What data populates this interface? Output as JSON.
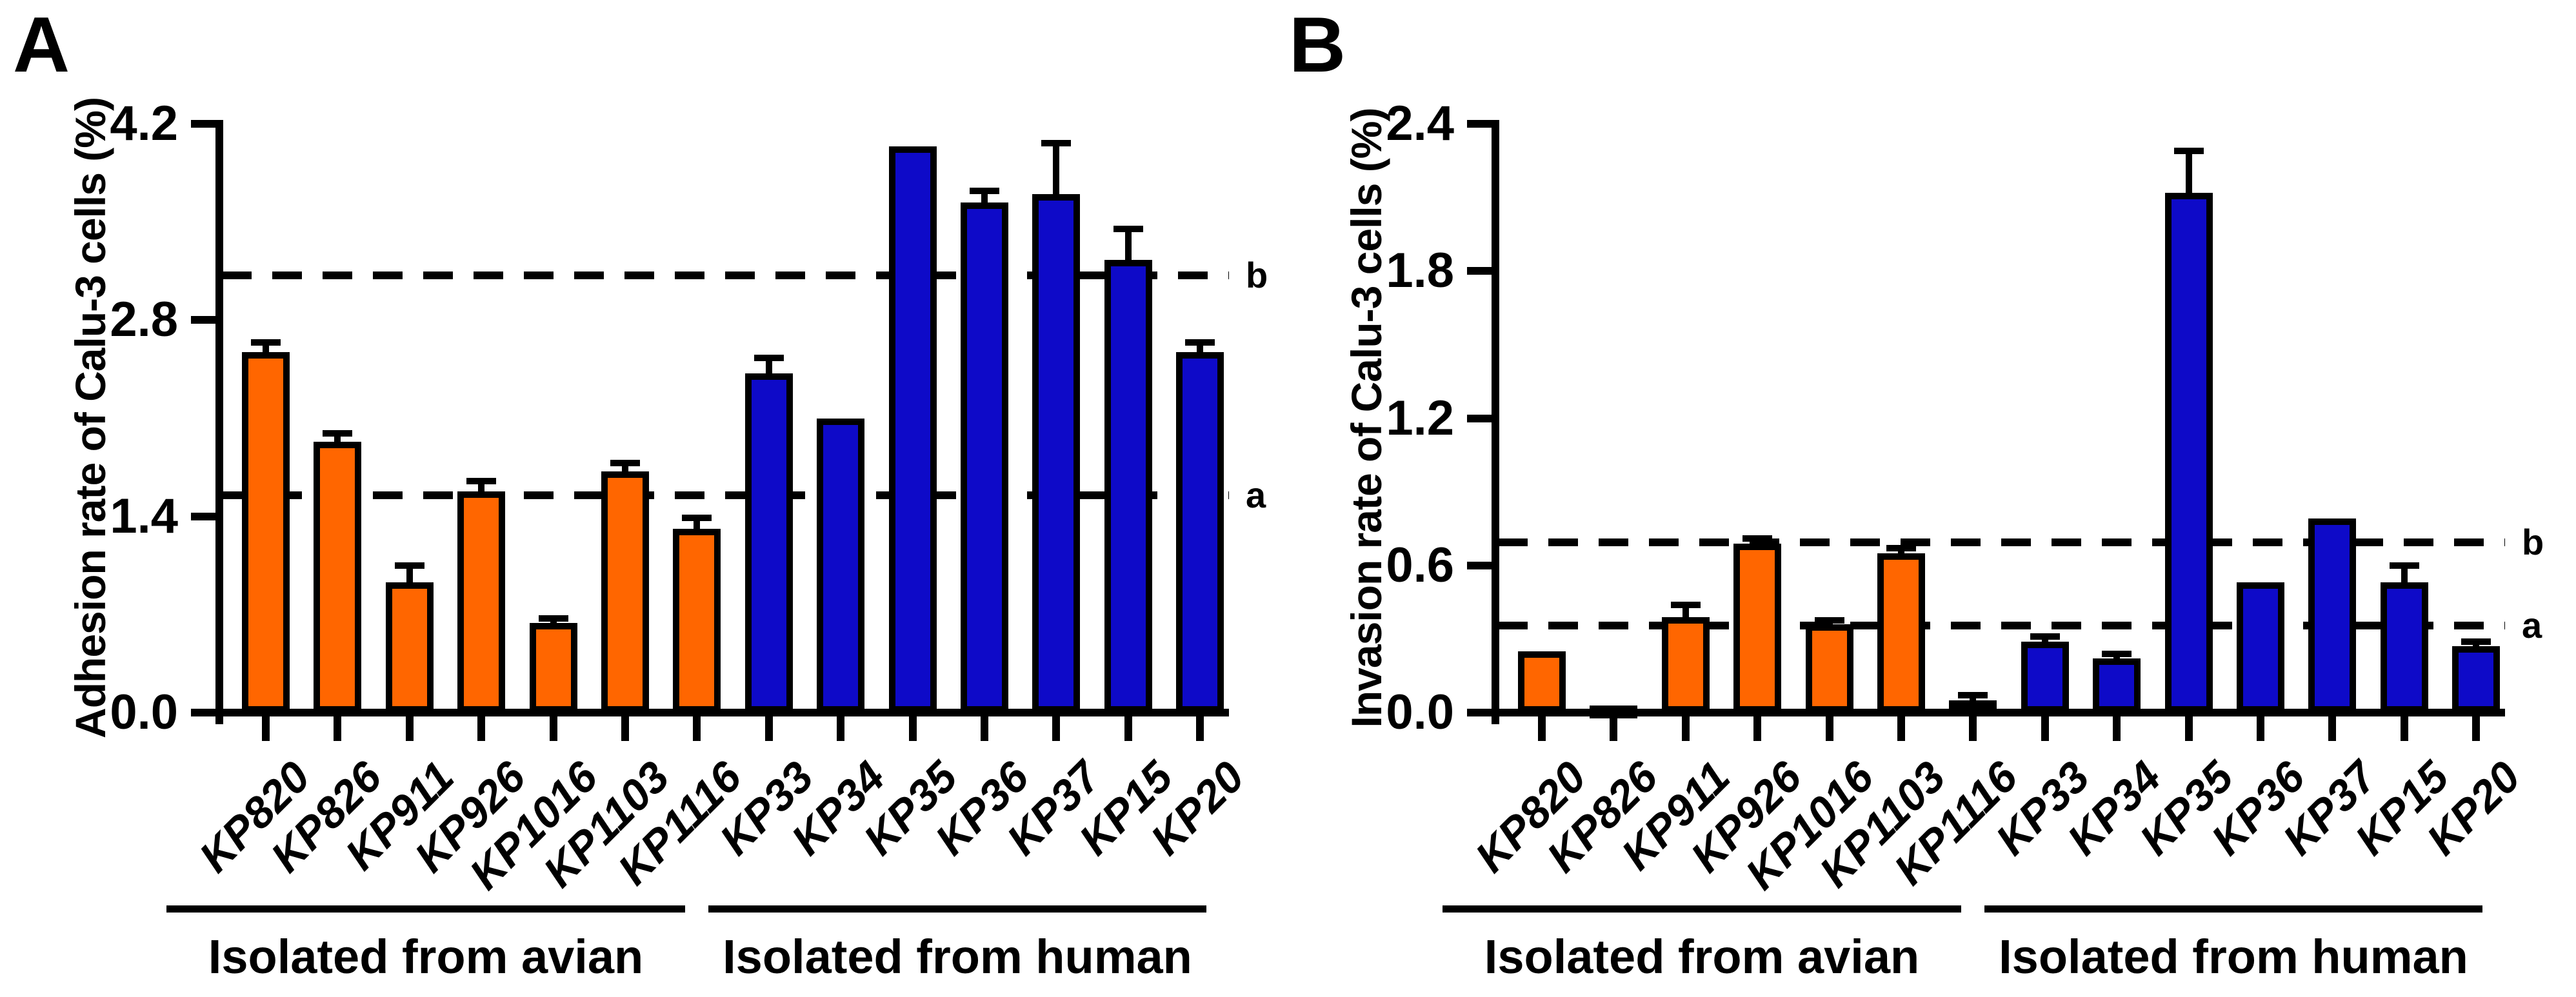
{
  "chart_data": [
    {
      "type": "bar",
      "panel_letter": "A",
      "ylabel": "Adhesion rate of Calu-3 cells (%)",
      "categories": [
        "KP820",
        "KP826",
        "KP911",
        "KP926",
        "KP1016",
        "KP1103",
        "KP1116",
        "KP33",
        "KP34",
        "KP35",
        "KP36",
        "KP37",
        "KP15",
        "KP20"
      ],
      "values": [
        2.57,
        1.93,
        0.93,
        1.58,
        0.64,
        1.72,
        1.31,
        2.42,
        2.1,
        4.04,
        3.64,
        3.7,
        3.23,
        2.57
      ],
      "errors": [
        0.07,
        0.06,
        0.12,
        0.07,
        0.03,
        0.06,
        0.08,
        0.11,
        0,
        0,
        0.08,
        0.36,
        0.22,
        0.07
      ],
      "yticks": [
        0,
        1.4,
        2.8,
        4.2
      ],
      "ylim": [
        0,
        4.2
      ],
      "grid": false,
      "legend_position": "none",
      "ref_lines": [
        {
          "label": "a",
          "value": 1.55
        },
        {
          "label": "b",
          "value": 3.12
        }
      ],
      "groups": [
        {
          "label": "Isolated from avian",
          "color": "#FF6600",
          "range": [
            0,
            6
          ]
        },
        {
          "label": "Isolated from human",
          "color": "#0E0AC8",
          "range": [
            7,
            13
          ]
        }
      ]
    },
    {
      "type": "bar",
      "panel_letter": "B",
      "ylabel": "Invasion rate of Calu-3 cells (%)",
      "categories": [
        "KP820",
        "KP826",
        "KP911",
        "KP926",
        "KP1016",
        "KP1103",
        "KP1116",
        "KP33",
        "KP34",
        "KP35",
        "KP36",
        "KP37",
        "KP15",
        "KP20"
      ],
      "values": [
        0.25,
        0.03,
        0.39,
        0.69,
        0.36,
        0.65,
        0.05,
        0.29,
        0.22,
        2.12,
        0.53,
        0.79,
        0.53,
        0.27
      ],
      "errors": [
        0,
        0,
        0.05,
        0.02,
        0.015,
        0.02,
        0.02,
        0.02,
        0.02,
        0.17,
        0,
        0,
        0.07,
        0.02
      ],
      "yticks": [
        0,
        0.6,
        1.2,
        1.8,
        2.4
      ],
      "ylim": [
        0,
        2.4
      ],
      "grid": false,
      "legend_position": "none",
      "ref_lines": [
        {
          "label": "a",
          "value": 0.355
        },
        {
          "label": "b",
          "value": 0.695
        }
      ],
      "groups": [
        {
          "label": "Isolated from avian",
          "color": "#FF6600",
          "range": [
            0,
            6
          ]
        },
        {
          "label": "Isolated from human",
          "color": "#0E0AC8",
          "range": [
            7,
            13
          ]
        }
      ]
    }
  ]
}
